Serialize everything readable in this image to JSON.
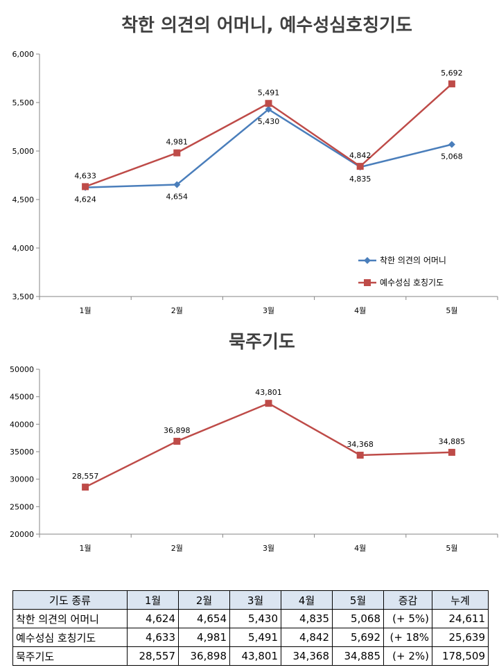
{
  "chart_data": [
    {
      "type": "line",
      "title": "착한 의견의 어머니, 예수성심호칭기도",
      "categories": [
        "1월",
        "2월",
        "3월",
        "4월",
        "5월"
      ],
      "ylim": [
        3500,
        6000
      ],
      "yticks": [
        "3,500",
        "4,000",
        "4,500",
        "5,000",
        "5,500",
        "6,000"
      ],
      "grid": false,
      "legend_position": "bottom-right",
      "series": [
        {
          "name": "착한 의견의 어머니",
          "color": "#4a7ebb",
          "marker": "diamond",
          "values": [
            4624,
            4654,
            5430,
            4835,
            5068
          ],
          "labels": [
            "4,624",
            "4,654",
            "5,430",
            "4,835",
            "5,068"
          ],
          "label_side": [
            "below",
            "below",
            "below",
            "below",
            "below"
          ]
        },
        {
          "name": "예수성심 호칭기도",
          "color": "#be4b48",
          "marker": "square",
          "values": [
            4633,
            4981,
            5491,
            4842,
            5692
          ],
          "labels": [
            "4,633",
            "4,981",
            "5,491",
            "4,842",
            "5,692"
          ],
          "label_side": [
            "above",
            "above",
            "above",
            "above",
            "above"
          ]
        }
      ]
    },
    {
      "type": "line",
      "title": "묵주기도",
      "categories": [
        "1월",
        "2월",
        "3월",
        "4월",
        "5월"
      ],
      "ylim": [
        20000,
        50000
      ],
      "yticks": [
        "20000",
        "25000",
        "30000",
        "35000",
        "40000",
        "45000",
        "50000"
      ],
      "grid": false,
      "legend_position": "none",
      "series": [
        {
          "color": "#be4b48",
          "marker": "square",
          "values": [
            28557,
            36898,
            43801,
            34368,
            34885
          ],
          "labels": [
            "28,557",
            "36,898",
            "43,801",
            "34,368",
            "34,885"
          ],
          "label_side": [
            "above",
            "above",
            "above",
            "above",
            "above"
          ]
        }
      ]
    }
  ],
  "table": {
    "headers": [
      "기도 종류",
      "1월",
      "2월",
      "3월",
      "4월",
      "5월",
      "증감",
      "누계"
    ],
    "rows": [
      [
        "착한 의견의 어머니",
        "4,624",
        "4,654",
        "5,430",
        "4,835",
        "5,068",
        "(+ 5%)",
        "24,611"
      ],
      [
        "예수성심 호칭기도",
        "4,633",
        "4,981",
        "5,491",
        "4,842",
        "5,692",
        "(+ 18%",
        "25,639"
      ],
      [
        "묵주기도",
        "28,557",
        "36,898",
        "43,801",
        "34,368",
        "34,885",
        "(+ 2%)",
        "178,509"
      ]
    ]
  }
}
